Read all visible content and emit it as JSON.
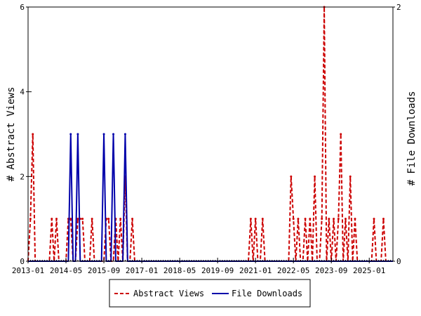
{
  "chart_data": {
    "type": "line",
    "ylabel": "# Abstract Views",
    "y2label": "# File Downloads",
    "ylim": [
      0,
      6
    ],
    "y2lim": [
      0,
      2
    ],
    "x_range": [
      "2013-01",
      "2025-11"
    ],
    "x_ticks": [
      "2013-01",
      "2014-05",
      "2015-09",
      "2017-01",
      "2018-05",
      "2019-09",
      "2021-01",
      "2022-05",
      "2023-09",
      "2025-01"
    ],
    "y_ticks": [
      0,
      2,
      4,
      6
    ],
    "y2_ticks": [
      0,
      2
    ],
    "grid": false,
    "legend_position": "bottom",
    "series": [
      {
        "name": "Abstract Views",
        "axis": "left",
        "color": "#cc0000",
        "style": "dashed",
        "points": [
          [
            "2013-02",
            1
          ],
          [
            "2013-03",
            3
          ],
          [
            "2013-11",
            1
          ],
          [
            "2014-01",
            1
          ],
          [
            "2014-06",
            1
          ],
          [
            "2014-07",
            1
          ],
          [
            "2014-10",
            1
          ],
          [
            "2014-11",
            1
          ],
          [
            "2014-12",
            1
          ],
          [
            "2015-04",
            1
          ],
          [
            "2015-10",
            1
          ],
          [
            "2015-11",
            1
          ],
          [
            "2016-02",
            1
          ],
          [
            "2016-04",
            1
          ],
          [
            "2016-06",
            2
          ],
          [
            "2016-09",
            1
          ],
          [
            "2020-11",
            1
          ],
          [
            "2021-01",
            1
          ],
          [
            "2021-04",
            1
          ],
          [
            "2022-04",
            2
          ],
          [
            "2022-05",
            1
          ],
          [
            "2022-07",
            1
          ],
          [
            "2022-10",
            1
          ],
          [
            "2022-12",
            1
          ],
          [
            "2023-02",
            2
          ],
          [
            "2023-05",
            1
          ],
          [
            "2023-06",
            6
          ],
          [
            "2023-08",
            1
          ],
          [
            "2023-10",
            1
          ],
          [
            "2023-12",
            1
          ],
          [
            "2024-01",
            3
          ],
          [
            "2024-03",
            1
          ],
          [
            "2024-05",
            2
          ],
          [
            "2024-07",
            1
          ],
          [
            "2025-03",
            1
          ],
          [
            "2025-07",
            1
          ]
        ]
      },
      {
        "name": "File Downloads",
        "axis": "right",
        "color": "#0000aa",
        "style": "solid",
        "points": [
          [
            "2014-07",
            1
          ],
          [
            "2014-10",
            1
          ],
          [
            "2015-09",
            1
          ],
          [
            "2016-01",
            1
          ],
          [
            "2016-06",
            1
          ]
        ]
      }
    ]
  }
}
